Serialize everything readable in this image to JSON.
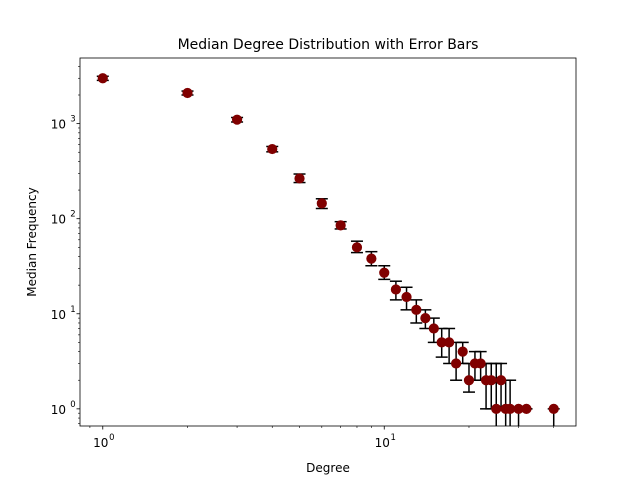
{
  "chart_data": {
    "type": "scatter",
    "title": "Median Degree Distribution with Error Bars",
    "xlabel": "Degree",
    "ylabel": "Median Frequency",
    "xscale": "log",
    "yscale": "log",
    "xlim": [
      0.83,
      48
    ],
    "ylim": [
      0.66,
      4900
    ],
    "grid": false,
    "marker_color": "#800000",
    "errorbar_color": "#000000",
    "x_major_ticks": [
      1,
      10
    ],
    "x_major_tick_labels": [
      "10",
      "10"
    ],
    "x_major_tick_exponents": [
      "0",
      "1"
    ],
    "y_major_ticks": [
      1,
      10,
      100,
      1000
    ],
    "y_major_tick_labels": [
      "10",
      "10",
      "10",
      "10"
    ],
    "y_major_tick_exponents": [
      "0",
      "1",
      "2",
      "3"
    ],
    "points": [
      {
        "x": 1,
        "y": 3000,
        "lo": 2850,
        "hi": 3150
      },
      {
        "x": 2,
        "y": 2100,
        "lo": 2000,
        "hi": 2200
      },
      {
        "x": 3,
        "y": 1100,
        "lo": 1040,
        "hi": 1160
      },
      {
        "x": 4,
        "y": 540,
        "lo": 505,
        "hi": 575
      },
      {
        "x": 5,
        "y": 265,
        "lo": 240,
        "hi": 295
      },
      {
        "x": 6,
        "y": 145,
        "lo": 128,
        "hi": 162
      },
      {
        "x": 7,
        "y": 85,
        "lo": 78,
        "hi": 93
      },
      {
        "x": 8,
        "y": 50,
        "lo": 44,
        "hi": 58
      },
      {
        "x": 9,
        "y": 38,
        "lo": 32,
        "hi": 45
      },
      {
        "x": 10,
        "y": 27,
        "lo": 23,
        "hi": 32
      },
      {
        "x": 11,
        "y": 18,
        "lo": 14,
        "hi": 22
      },
      {
        "x": 12,
        "y": 15,
        "lo": 11,
        "hi": 19
      },
      {
        "x": 13,
        "y": 11,
        "lo": 8,
        "hi": 14
      },
      {
        "x": 14,
        "y": 9,
        "lo": 7,
        "hi": 11
      },
      {
        "x": 15,
        "y": 7,
        "lo": 5,
        "hi": 9
      },
      {
        "x": 16,
        "y": 5,
        "lo": 3.5,
        "hi": 7
      },
      {
        "x": 17,
        "y": 5,
        "lo": 3,
        "hi": 7
      },
      {
        "x": 18,
        "y": 3,
        "lo": 2,
        "hi": 5
      },
      {
        "x": 19,
        "y": 4,
        "lo": 3,
        "hi": 5
      },
      {
        "x": 20,
        "y": 2,
        "lo": 1.5,
        "hi": 3
      },
      {
        "x": 21,
        "y": 3,
        "lo": 2,
        "hi": 4
      },
      {
        "x": 22,
        "y": 3,
        "lo": 2,
        "hi": 4
      },
      {
        "x": 23,
        "y": 2,
        "lo": 1,
        "hi": 3
      },
      {
        "x": 24,
        "y": 2,
        "lo": 1,
        "hi": 3
      },
      {
        "x": 25,
        "y": 1,
        "lo": 0.5,
        "hi": 3
      },
      {
        "x": 26,
        "y": 2,
        "lo": 1,
        "hi": 3
      },
      {
        "x": 27,
        "y": 1,
        "lo": 0.5,
        "hi": 2
      },
      {
        "x": 28,
        "y": 1,
        "lo": 0.5,
        "hi": 2
      },
      {
        "x": 30,
        "y": 1,
        "lo": 0.5,
        "hi": 1
      },
      {
        "x": 32,
        "y": 1,
        "lo": 1,
        "hi": 1
      },
      {
        "x": 40,
        "y": 1,
        "lo": 0.5,
        "hi": 1
      }
    ]
  }
}
